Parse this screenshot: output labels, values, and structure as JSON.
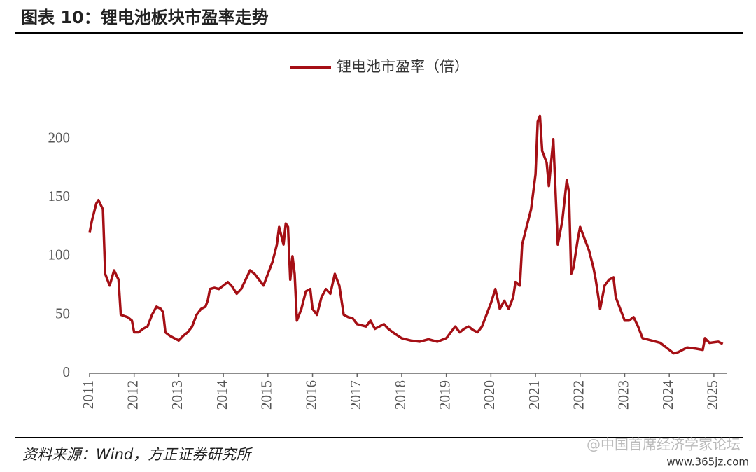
{
  "header": {
    "title": "图表 10：锂电池板块市盈率走势"
  },
  "chart_data": {
    "type": "line",
    "x": [
      2011.0,
      2011.05,
      2011.15,
      2011.2,
      2011.3,
      2011.35,
      2011.45,
      2011.55,
      2011.65,
      2011.7,
      2011.85,
      2011.95,
      2012.0,
      2012.1,
      2012.2,
      2012.3,
      2012.4,
      2012.5,
      2012.6,
      2012.65,
      2012.7,
      2012.8,
      2012.9,
      2013.0,
      2013.1,
      2013.2,
      2013.3,
      2013.4,
      2013.5,
      2013.6,
      2013.65,
      2013.7,
      2013.8,
      2013.9,
      2014.0,
      2014.1,
      2014.2,
      2014.3,
      2014.4,
      2014.5,
      2014.6,
      2014.7,
      2014.8,
      2014.9,
      2015.0,
      2015.1,
      2015.2,
      2015.25,
      2015.35,
      2015.4,
      2015.45,
      2015.5,
      2015.55,
      2015.6,
      2015.65,
      2015.75,
      2015.85,
      2015.95,
      2016.0,
      2016.1,
      2016.2,
      2016.3,
      2016.4,
      2016.5,
      2016.55,
      2016.6,
      2016.7,
      2016.8,
      2016.9,
      2017.0,
      2017.2,
      2017.3,
      2017.4,
      2017.5,
      2017.6,
      2017.7,
      2017.8,
      2018.0,
      2018.2,
      2018.4,
      2018.6,
      2018.8,
      2019.0,
      2019.1,
      2019.2,
      2019.3,
      2019.4,
      2019.5,
      2019.6,
      2019.7,
      2019.8,
      2019.9,
      2020.0,
      2020.1,
      2020.2,
      2020.3,
      2020.4,
      2020.5,
      2020.55,
      2020.65,
      2020.7,
      2020.8,
      2020.9,
      2021.0,
      2021.05,
      2021.1,
      2021.15,
      2021.25,
      2021.3,
      2021.4,
      2021.45,
      2021.5,
      2021.6,
      2021.7,
      2021.75,
      2021.8,
      2021.85,
      2021.95,
      2022.0,
      2022.1,
      2022.2,
      2022.3,
      2022.35,
      2022.45,
      2022.55,
      2022.65,
      2022.75,
      2022.8,
      2022.9,
      2023.0,
      2023.1,
      2023.2,
      2023.3,
      2023.4,
      2023.6,
      2023.8,
      2024.0,
      2024.1,
      2024.2,
      2024.4,
      2024.6,
      2024.75,
      2024.8,
      2024.9,
      2025.1,
      2025.2
    ],
    "series": [
      {
        "name": "锂电池市盈率（倍）",
        "color": "#a50f15",
        "values": [
          120,
          130,
          145,
          148,
          140,
          85,
          75,
          88,
          80,
          50,
          48,
          45,
          35,
          35,
          38,
          40,
          50,
          57,
          55,
          52,
          35,
          32,
          30,
          28,
          32,
          35,
          40,
          50,
          55,
          57,
          62,
          72,
          73,
          72,
          75,
          78,
          74,
          68,
          72,
          80,
          88,
          85,
          80,
          75,
          85,
          95,
          110,
          125,
          110,
          128,
          125,
          80,
          100,
          85,
          45,
          55,
          70,
          72,
          55,
          50,
          65,
          72,
          68,
          85,
          80,
          75,
          50,
          48,
          47,
          42,
          40,
          45,
          38,
          40,
          42,
          38,
          35,
          30,
          28,
          27,
          29,
          27,
          30,
          35,
          40,
          35,
          38,
          40,
          37,
          35,
          40,
          50,
          60,
          72,
          55,
          62,
          55,
          65,
          78,
          75,
          110,
          125,
          140,
          170,
          215,
          220,
          190,
          180,
          160,
          200,
          155,
          110,
          130,
          165,
          155,
          85,
          90,
          115,
          125,
          115,
          105,
          90,
          80,
          55,
          75,
          80,
          82,
          65,
          55,
          45,
          45,
          48,
          40,
          30,
          28,
          26,
          20,
          17,
          18,
          22,
          21,
          20,
          30,
          26,
          27,
          25
        ]
      }
    ],
    "xlim": [
      2011,
      2025.3
    ],
    "xticks": [
      2011,
      2012,
      2013,
      2014,
      2015,
      2016,
      2017,
      2018,
      2019,
      2020,
      2021,
      2022,
      2023,
      2024,
      2025
    ],
    "ylim": [
      0,
      240
    ],
    "yticks": [
      0,
      50,
      100,
      150,
      200
    ],
    "legend": "top"
  },
  "footer": {
    "source": "资料来源：Wind，方正证券研究所",
    "watermark": "@中国首席经济学家论坛",
    "watermark_url": "www.365jz.com"
  }
}
